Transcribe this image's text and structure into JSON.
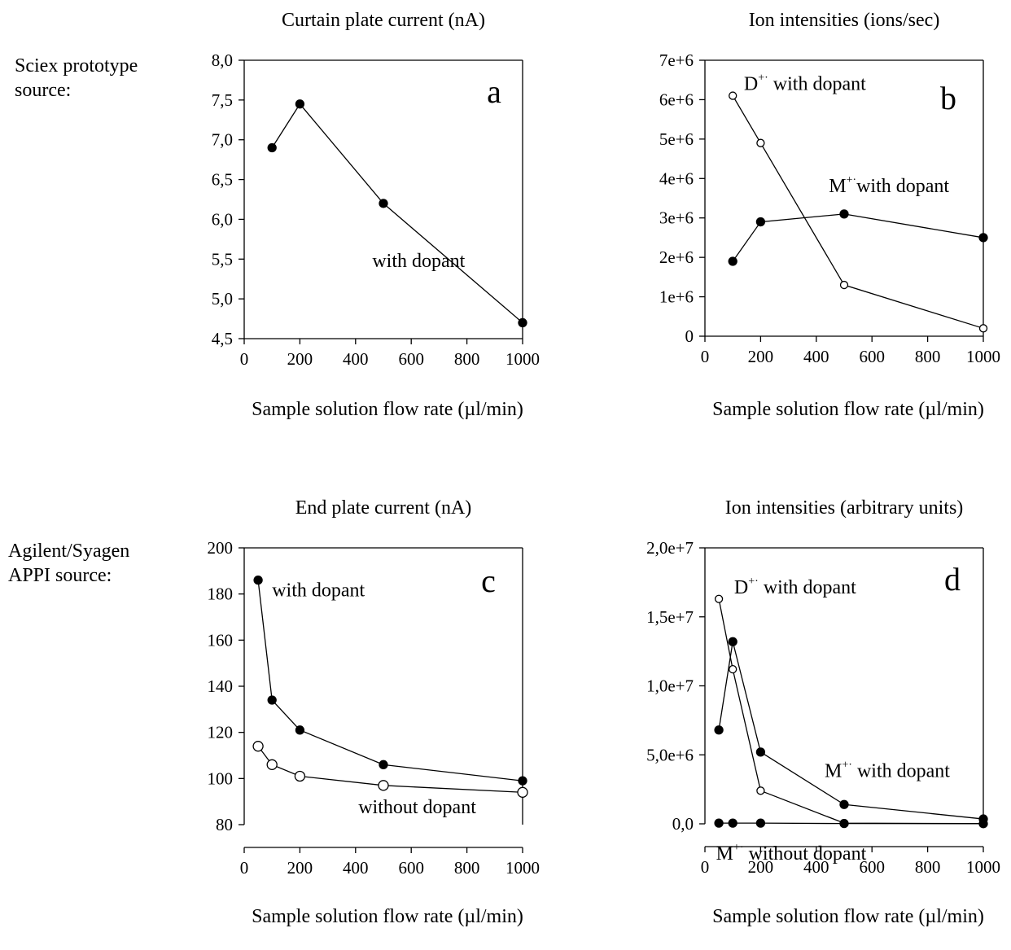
{
  "row_labels": {
    "top": [
      "Sciex prototype",
      "source:"
    ],
    "bottom": [
      "Agilent/Syagen",
      "APPI source:"
    ]
  },
  "chart_data": [
    {
      "type": "line",
      "title": "Curtain plate current (nA)",
      "xlabel": "Sample solution flow rate (µl/min)",
      "ylabel": "",
      "panel_letter": "a",
      "xlim": [
        0,
        1000
      ],
      "ylim": [
        4.5,
        8.0
      ],
      "xticks": [
        0,
        200,
        400,
        600,
        800,
        1000
      ],
      "xtick_labels": [
        "0",
        "200",
        "400",
        "600",
        "800",
        "1000"
      ],
      "yticks": [
        4.5,
        5.0,
        5.5,
        6.0,
        6.5,
        7.0,
        7.5,
        8.0
      ],
      "ytick_labels": [
        "4,5",
        "5,0",
        "5,5",
        "6,0",
        "6,5",
        "7,0",
        "7,5",
        "8,0"
      ],
      "series": [
        {
          "marker": "filled",
          "x": [
            100,
            200,
            500,
            1000
          ],
          "y": [
            6.9,
            7.45,
            6.2,
            4.7
          ]
        }
      ],
      "annotations": [
        {
          "text": "with dopant",
          "x": 460,
          "y": 5.4
        }
      ]
    },
    {
      "type": "line",
      "title": "Ion intensities (ions/sec)",
      "xlabel": "Sample solution flow rate (µl/min)",
      "ylabel": "",
      "panel_letter": "b",
      "xlim": [
        0,
        1000
      ],
      "ylim": [
        0,
        7000000
      ],
      "xticks": [
        0,
        200,
        400,
        600,
        800,
        1000
      ],
      "xtick_labels": [
        "0",
        "200",
        "400",
        "600",
        "800",
        "1000"
      ],
      "yticks": [
        0,
        1000000,
        2000000,
        3000000,
        4000000,
        5000000,
        6000000,
        7000000
      ],
      "ytick_labels": [
        "0",
        "1e+6",
        "2e+6",
        "3e+6",
        "4e+6",
        "5e+6",
        "6e+6",
        "7e+6"
      ],
      "series": [
        {
          "marker": "open",
          "x": [
            100,
            200,
            500,
            1000
          ],
          "y": [
            6100000,
            4900000,
            1300000,
            200000
          ]
        },
        {
          "marker": "filled",
          "x": [
            100,
            200,
            500,
            1000
          ],
          "y": [
            1900000,
            2900000,
            3100000,
            2500000
          ]
        }
      ],
      "annotations": [
        {
          "main": "D",
          "sup": "+·",
          "rest": " with dopant",
          "x": 140,
          "y": 6250000
        },
        {
          "main": "M",
          "sup": "+·",
          "rest": "with dopant",
          "x": 445,
          "y": 3650000
        }
      ]
    },
    {
      "type": "line",
      "title": "End plate current (nA)",
      "xlabel": "Sample solution flow rate (µl/min)",
      "ylabel": "",
      "panel_letter": "c",
      "xlim": [
        0,
        1000
      ],
      "ylim": [
        80,
        200
      ],
      "xticks": [
        0,
        200,
        400,
        600,
        800,
        1000
      ],
      "xtick_labels": [
        "0",
        "200",
        "400",
        "600",
        "800",
        "1000"
      ],
      "yticks": [
        80,
        100,
        120,
        140,
        160,
        180,
        200
      ],
      "ytick_labels": [
        "80",
        "100",
        "120",
        "140",
        "160",
        "180",
        "200"
      ],
      "series": [
        {
          "marker": "filled",
          "x": [
            50,
            100,
            200,
            500,
            1000
          ],
          "y": [
            186,
            134,
            121,
            106,
            99
          ]
        },
        {
          "marker": "open-large",
          "x": [
            50,
            100,
            200,
            500,
            1000
          ],
          "y": [
            114,
            106,
            101,
            97,
            94
          ]
        }
      ],
      "annotations": [
        {
          "text": "with dopant",
          "x": 100,
          "y": 179
        },
        {
          "text": "without dopant",
          "x": 410,
          "y": 85
        }
      ]
    },
    {
      "type": "line",
      "title": "Ion intensities (arbitrary units)",
      "xlabel": "Sample solution flow rate (µl/min)",
      "ylabel": "",
      "panel_letter": "d",
      "xlim": [
        0,
        1000
      ],
      "ylim": [
        0,
        20000000
      ],
      "xticks": [
        0,
        200,
        400,
        600,
        800,
        1000
      ],
      "xtick_labels": [
        "0",
        "200",
        "400",
        "600",
        "800",
        "1000"
      ],
      "yticks": [
        0,
        5000000,
        10000000,
        15000000,
        20000000
      ],
      "ytick_labels": [
        "0,0",
        "5,0e+6",
        "1,0e+7",
        "1,5e+7",
        "2,0e+7"
      ],
      "series": [
        {
          "marker": "open",
          "x": [
            50,
            100,
            200,
            500,
            1000
          ],
          "y": [
            16300000,
            11200000,
            2400000,
            50000,
            20000
          ]
        },
        {
          "marker": "filled",
          "x": [
            50,
            100,
            200,
            500,
            1000
          ],
          "y": [
            6800000,
            13200000,
            5200000,
            1400000,
            350000
          ]
        },
        {
          "marker": "filled",
          "x": [
            50,
            100,
            200,
            500,
            1000
          ],
          "y": [
            50000,
            50000,
            50000,
            20000,
            10000
          ]
        }
      ],
      "annotations": [
        {
          "main": "D",
          "sup": "+·",
          "rest": " with dopant",
          "x": 105,
          "y": 16700000
        },
        {
          "main": "M",
          "sup": "+·",
          "rest": " with dopant",
          "x": 430,
          "y": 3400000
        },
        {
          "main": "M",
          "sup": "+·",
          "rest": " without dopant",
          "x": 40,
          "y": -2600000
        }
      ]
    }
  ]
}
